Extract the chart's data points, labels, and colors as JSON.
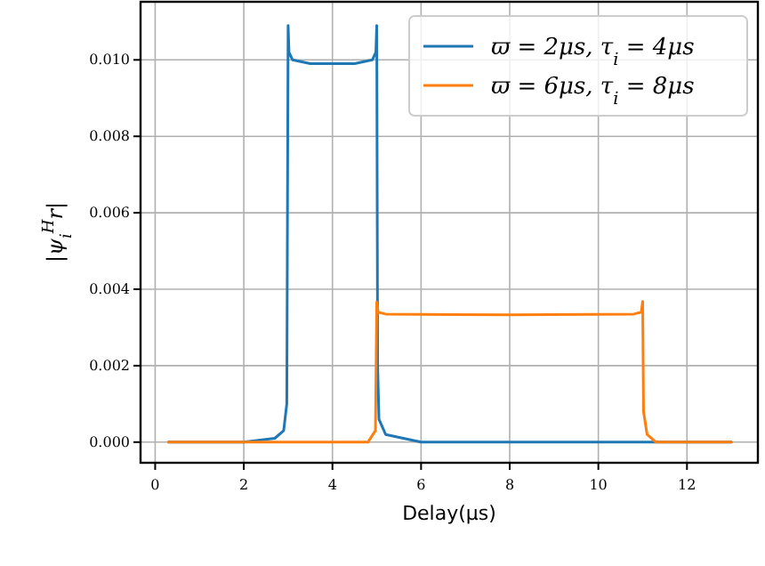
{
  "chart_data": {
    "type": "line",
    "xlabel": "Delay(μs)",
    "ylabel": "|ψ$_{i}$$^{H}$r|",
    "xlim": [
      -0.33,
      13.6
    ],
    "ylim": [
      -0.00054,
      0.01152
    ],
    "xticks": [
      0,
      2,
      4,
      6,
      8,
      10,
      12
    ],
    "yticks": [
      {
        "value": 0,
        "label": "0.000"
      },
      {
        "value": 0.002,
        "label": "0.002"
      },
      {
        "value": 0.004,
        "label": "0.004"
      },
      {
        "value": 0.006,
        "label": "0.006"
      },
      {
        "value": 0.008,
        "label": "0.008"
      },
      {
        "value": 0.01,
        "label": "0.010"
      }
    ],
    "grid": true,
    "legend": "top right",
    "line_style": "solid",
    "series": [
      {
        "name": "ϖ = 2μs, τ$_{i}$ = 4μs",
        "color": "#1f77b4",
        "x": [
          0.3,
          2,
          2.7,
          2.9,
          2.97,
          3.0,
          3.02,
          3.1,
          3.5,
          4,
          4.5,
          4.9,
          4.98,
          5.0,
          5.02,
          5.05,
          5.2,
          6,
          13
        ],
        "values": [
          0,
          0,
          0.0001,
          0.0003,
          0.001,
          0.0109,
          0.0102,
          0.01,
          0.0099,
          0.0099,
          0.0099,
          0.01,
          0.0102,
          0.0109,
          0.002,
          0.0006,
          0.0002,
          0,
          0
        ]
      },
      {
        "name": "ϖ = 6μs, τ$_{i}$ = 8μs",
        "color": "#ff7f0e",
        "x": [
          0.3,
          4.8,
          4.97,
          5.0,
          5.03,
          5.2,
          8,
          10.8,
          10.97,
          11.0,
          11.02,
          11.1,
          11.3,
          13
        ],
        "values": [
          0,
          0,
          0.0003,
          0.00366,
          0.0034,
          0.00335,
          0.00333,
          0.00335,
          0.0034,
          0.00368,
          0.0008,
          0.0002,
          0,
          0
        ]
      }
    ]
  }
}
